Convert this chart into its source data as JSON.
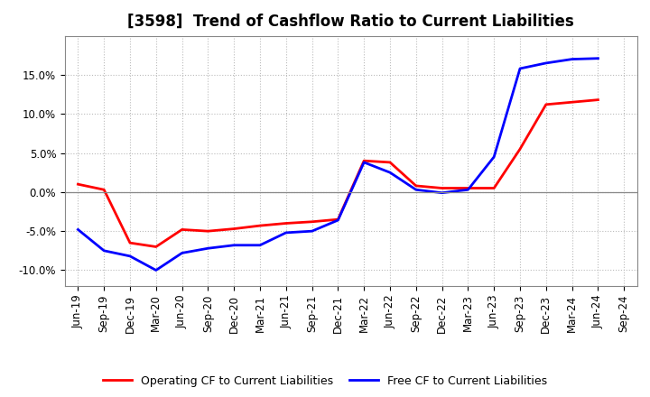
{
  "title": "[3598]  Trend of Cashflow Ratio to Current Liabilities",
  "x_labels": [
    "Jun-19",
    "Sep-19",
    "Dec-19",
    "Mar-20",
    "Jun-20",
    "Sep-20",
    "Dec-20",
    "Mar-21",
    "Jun-21",
    "Sep-21",
    "Dec-21",
    "Mar-22",
    "Jun-22",
    "Sep-22",
    "Dec-22",
    "Mar-23",
    "Jun-23",
    "Sep-23",
    "Dec-23",
    "Mar-24",
    "Jun-24",
    "Sep-24"
  ],
  "operating_cf": [
    1.0,
    0.3,
    -6.5,
    -7.0,
    -4.8,
    -5.0,
    -4.7,
    -4.3,
    -4.0,
    -3.8,
    -3.5,
    4.0,
    3.8,
    0.8,
    0.5,
    0.5,
    0.5,
    5.5,
    11.2,
    11.5,
    11.8,
    null
  ],
  "free_cf": [
    -4.8,
    -7.5,
    -8.2,
    -10.0,
    -7.8,
    -7.2,
    -6.8,
    -6.8,
    -5.2,
    -5.0,
    -3.6,
    3.8,
    2.5,
    0.3,
    -0.1,
    0.3,
    4.5,
    15.8,
    16.5,
    17.0,
    17.1,
    null
  ],
  "ylim": [
    -12,
    20
  ],
  "yticks": [
    -10.0,
    -5.0,
    0.0,
    5.0,
    10.0,
    15.0
  ],
  "operating_color": "#ff0000",
  "free_color": "#0000ff",
  "background_color": "#ffffff",
  "plot_bg_color": "#ffffff",
  "grid_color": "#bbbbbb",
  "legend_operating": "Operating CF to Current Liabilities",
  "legend_free": "Free CF to Current Liabilities",
  "title_fontsize": 12,
  "tick_fontsize": 8.5,
  "legend_fontsize": 9,
  "linewidth": 2.0
}
